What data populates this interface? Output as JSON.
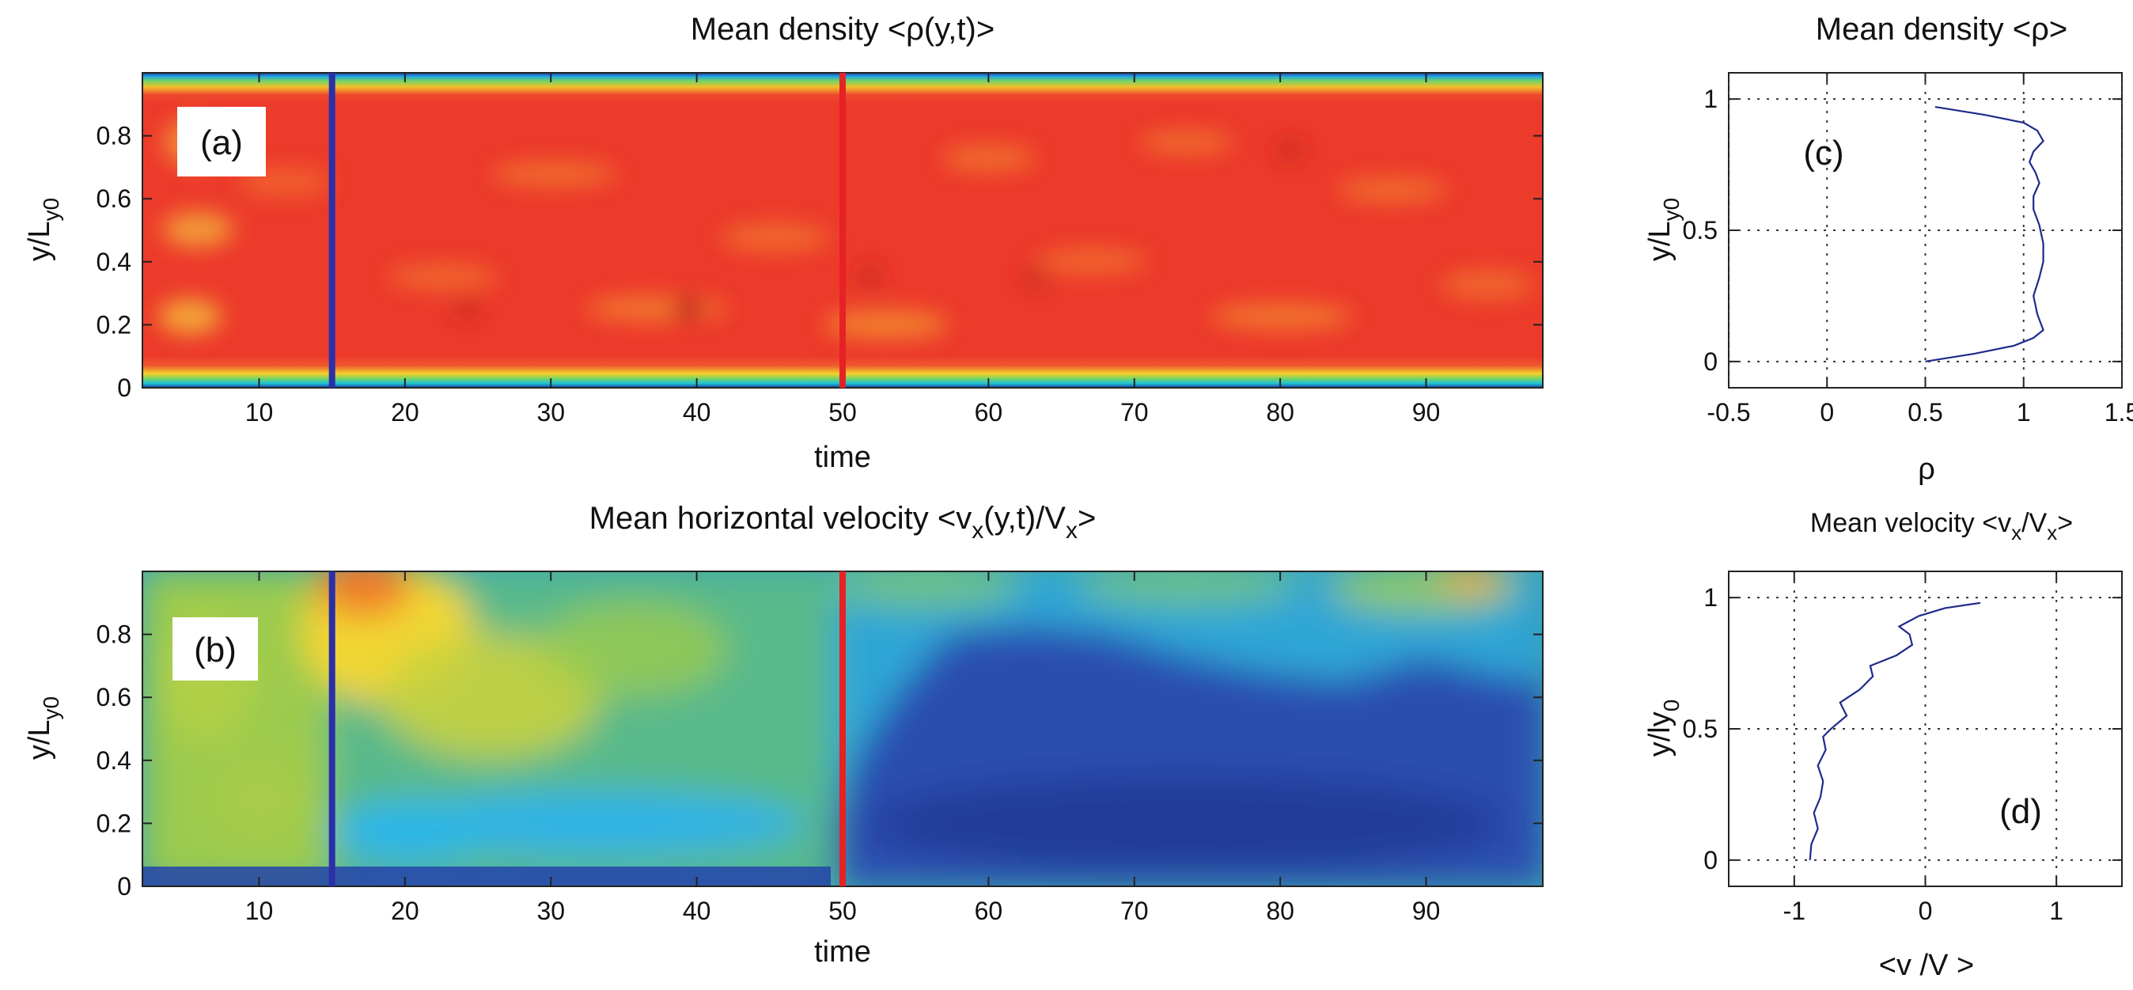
{
  "colors": {
    "blue_line": "#2b2fa8",
    "red_line": "#e52226",
    "curve": "#1f2a8c",
    "jet_red": "#f0302a",
    "jet_blue": "#1f3a9e"
  },
  "chart_data": [
    {
      "id": "a",
      "type": "heatmap",
      "title": "Mean density <ρ(y,t)>",
      "panel_label": "(a)",
      "xlabel": "time",
      "ylabel_main": "y/L",
      "ylabel_sub": "y0",
      "xlim": [
        2,
        98
      ],
      "ylim": [
        0,
        1
      ],
      "xticks": [
        10,
        20,
        30,
        40,
        50,
        60,
        70,
        80,
        90
      ],
      "yticks": [
        0,
        0.2,
        0.4,
        0.6,
        0.8
      ],
      "ytick_labels": [
        "0",
        "0.2",
        "0.4",
        "0.6",
        "0.8"
      ],
      "markers": [
        {
          "name": "blue",
          "x": 15,
          "color": "#2b2fa8"
        },
        {
          "name": "red",
          "x": 50,
          "color": "#e52226"
        }
      ],
      "field": "density"
    },
    {
      "id": "b",
      "type": "heatmap",
      "title": "Mean horizontal velocity <v",
      "title_sub1": "x",
      "title_mid": "(y,t)/V",
      "title_sub2": "x",
      "title_end": ">",
      "panel_label": "(b)",
      "xlabel": "time",
      "ylabel_main": "y/L",
      "ylabel_sub": "y0",
      "xlim": [
        2,
        98
      ],
      "ylim": [
        0,
        1
      ],
      "xticks": [
        10,
        20,
        30,
        40,
        50,
        60,
        70,
        80,
        90
      ],
      "yticks": [
        0,
        0.2,
        0.4,
        0.6,
        0.8
      ],
      "ytick_labels": [
        "0",
        "0.2",
        "0.4",
        "0.6",
        "0.8"
      ],
      "markers": [
        {
          "name": "blue",
          "x": 15,
          "color": "#2b2fa8"
        },
        {
          "name": "red",
          "x": 50,
          "color": "#e52226"
        }
      ],
      "field": "velocity"
    },
    {
      "id": "c",
      "type": "line",
      "title": "Mean density <ρ>",
      "panel_label": "(c)",
      "xlabel": "ρ",
      "ylabel_main": "y/L",
      "ylabel_sub": "y0",
      "xlim": [
        -0.5,
        1.5
      ],
      "ylim": [
        -0.1,
        1.1
      ],
      "xticks": [
        -0.5,
        0,
        0.5,
        1,
        1.5
      ],
      "xtick_labels": [
        "-0.5",
        "0",
        "0.5",
        "1",
        "1.5"
      ],
      "yticks": [
        0,
        0.5,
        1
      ],
      "ytick_labels": [
        "0",
        "0.5",
        "1"
      ],
      "grid": true,
      "series": [
        {
          "name": "density profile",
          "x": [
            0.5,
            0.75,
            0.95,
            1.05,
            1.1,
            1.07,
            1.05,
            1.08,
            1.1,
            1.1,
            1.08,
            1.05,
            1.05,
            1.08,
            1.06,
            1.03,
            1.05,
            1.1,
            1.07,
            1.0,
            0.8,
            0.55
          ],
          "y": [
            0.0,
            0.03,
            0.06,
            0.09,
            0.12,
            0.18,
            0.25,
            0.32,
            0.38,
            0.45,
            0.52,
            0.58,
            0.63,
            0.68,
            0.72,
            0.76,
            0.8,
            0.84,
            0.88,
            0.91,
            0.94,
            0.97
          ]
        }
      ]
    },
    {
      "id": "d",
      "type": "line",
      "title": "Mean velocity <v",
      "title_sub1": "x",
      "title_mid": "/V",
      "title_sub2": "x",
      "title_end": ">",
      "panel_label": "(d)",
      "xlabel": "<v /V >",
      "ylabel_main": "y/ly",
      "ylabel_sub": "0",
      "xlim": [
        -1.5,
        1.5
      ],
      "ylim": [
        -0.1,
        1.1
      ],
      "xticks": [
        -1,
        0,
        1
      ],
      "xtick_labels": [
        "-1",
        "0",
        "1"
      ],
      "yticks": [
        0,
        0.5,
        1
      ],
      "ytick_labels": [
        "0",
        "0.5",
        "1"
      ],
      "grid": true,
      "series": [
        {
          "name": "velocity profile",
          "x": [
            -0.88,
            -0.87,
            -0.82,
            -0.85,
            -0.8,
            -0.78,
            -0.82,
            -0.76,
            -0.78,
            -0.72,
            -0.6,
            -0.65,
            -0.5,
            -0.4,
            -0.42,
            -0.22,
            -0.1,
            -0.12,
            -0.2,
            -0.05,
            0.15,
            0.42
          ],
          "y": [
            0.0,
            0.06,
            0.12,
            0.18,
            0.24,
            0.3,
            0.36,
            0.42,
            0.47,
            0.5,
            0.55,
            0.6,
            0.65,
            0.7,
            0.74,
            0.78,
            0.82,
            0.86,
            0.89,
            0.93,
            0.96,
            0.98
          ]
        }
      ]
    }
  ]
}
